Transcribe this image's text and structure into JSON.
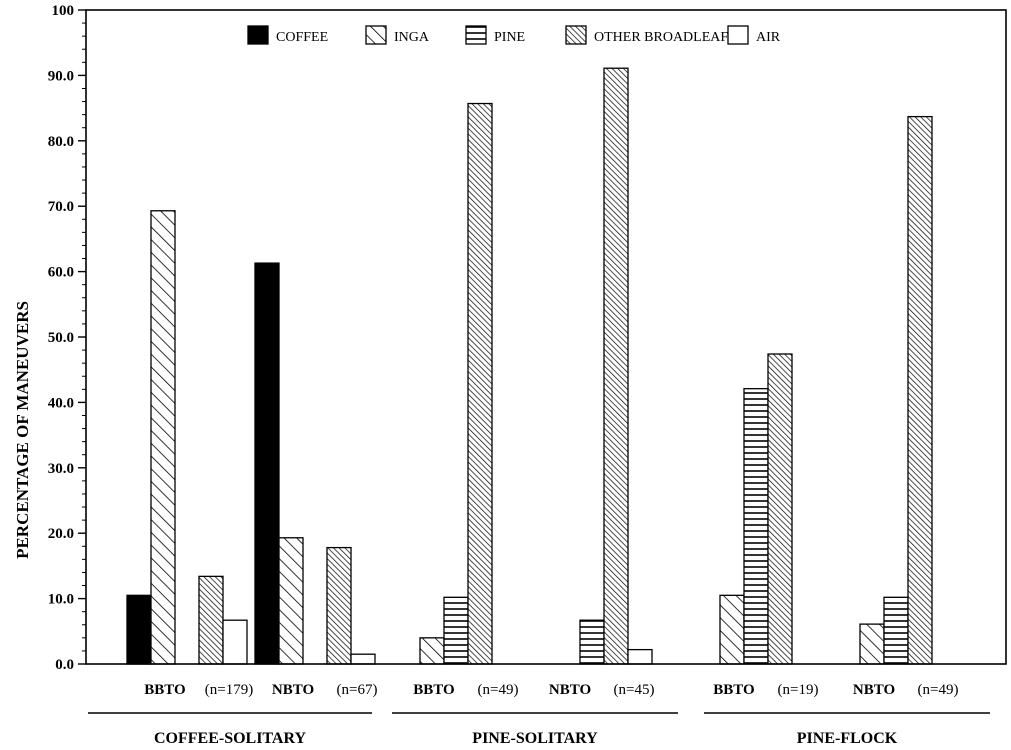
{
  "chart_data": {
    "type": "bar",
    "ylabel": "PERCENTAGE OF MANEUVERS",
    "ylim": [
      0,
      100
    ],
    "yticks": [
      "0.0",
      "10.0",
      "20.0",
      "30.0",
      "40.0",
      "50.0",
      "60.0",
      "70.0",
      "80.0",
      "90.0",
      "100"
    ],
    "legend_position": "top",
    "categories": [
      {
        "label": "BBTO",
        "n": "(n=179)",
        "group": "COFFEE-SOLITARY"
      },
      {
        "label": "NBTO",
        "n": "(n=67)",
        "group": "COFFEE-SOLITARY"
      },
      {
        "label": "BBTO",
        "n": "(n=49)",
        "group": "PINE-SOLITARY"
      },
      {
        "label": "NBTO",
        "n": "(n=45)",
        "group": "PINE-SOLITARY"
      },
      {
        "label": "BBTO",
        "n": "(n=19)",
        "group": "PINE-FLOCK"
      },
      {
        "label": "NBTO",
        "n": "(n=49)",
        "group": "PINE-FLOCK"
      }
    ],
    "groups": [
      "COFFEE-SOLITARY",
      "PINE-SOLITARY",
      "PINE-FLOCK"
    ],
    "series": [
      {
        "name": "COFFEE",
        "pattern": "solid",
        "values": [
          10.5,
          61.3,
          0,
          0,
          0,
          0
        ]
      },
      {
        "name": "INGA",
        "pattern": "diagonal",
        "values": [
          69.3,
          19.3,
          4.0,
          0,
          10.5,
          6.1
        ]
      },
      {
        "name": "PINE",
        "pattern": "horizontal",
        "values": [
          0,
          0,
          10.2,
          6.7,
          42.1,
          10.2
        ]
      },
      {
        "name": "OTHER BROADLEAF",
        "pattern": "dense-diagonal",
        "values": [
          13.4,
          17.8,
          85.7,
          91.1,
          47.4,
          83.7
        ]
      },
      {
        "name": "AIR",
        "pattern": "empty",
        "values": [
          6.7,
          1.5,
          0,
          2.2,
          0,
          0
        ]
      }
    ]
  }
}
